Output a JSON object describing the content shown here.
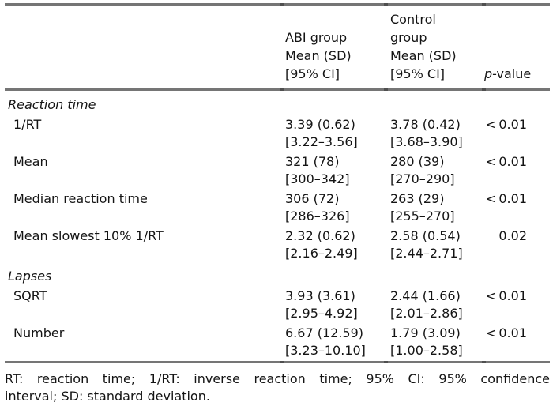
{
  "table": {
    "header": {
      "abi_lines": [
        "ABI group",
        "Mean (SD)",
        "[95% CI]"
      ],
      "control_lines": [
        "Control",
        "group",
        "Mean (SD)",
        "[95% CI]"
      ],
      "pvalue_prefix": "p",
      "pvalue_suffix": "-value"
    },
    "rows": [
      {
        "type": "section",
        "label": "Reaction time"
      },
      {
        "type": "data",
        "label": "1/RT",
        "abi_mean": "3.39 (0.62)",
        "abi_ci": "[3.22–3.56]",
        "control_mean": "3.78 (0.42)",
        "control_ci": "[3.68–3.90]",
        "p": "< 0.01"
      },
      {
        "type": "data",
        "label": "Mean",
        "abi_mean": "321 (78)",
        "abi_ci": "[300–342]",
        "control_mean": "280 (39)",
        "control_ci": "[270–290]",
        "p": "< 0.01"
      },
      {
        "type": "data",
        "label": "Median reaction time",
        "abi_mean": "306 (72)",
        "abi_ci": "[286–326]",
        "control_mean": "263 (29)",
        "control_ci": "[255–270]",
        "p": "< 0.01"
      },
      {
        "type": "data",
        "label": "Mean slowest 10% 1/RT",
        "abi_mean": "2.32 (0.62)",
        "abi_ci": "[2.16–2.49]",
        "control_mean": "2.58 (0.54)",
        "control_ci": "[2.44–2.71]",
        "p": "0.02"
      },
      {
        "type": "section",
        "label": "Lapses"
      },
      {
        "type": "data",
        "label": "SQRT",
        "abi_mean": "3.93 (3.61)",
        "abi_ci": "[2.95–4.92]",
        "control_mean": "2.44 (1.66)",
        "control_ci": "[2.01–2.86]",
        "p": "< 0.01"
      },
      {
        "type": "data",
        "label": "Number",
        "abi_mean": "6.67 (12.59)",
        "abi_ci": "[3.23–10.10]",
        "control_mean": "1.79 (3.09)",
        "control_ci": "[1.00–2.58]",
        "p": "< 0.01"
      }
    ]
  },
  "footnote": {
    "line1": "RT: reaction time; 1/RT: inverse reaction time; 95% CI: 95% confidence",
    "line2": "interval; SD: standard deviation."
  },
  "colors": {
    "rule": "#757575",
    "text": "#141414",
    "background": "#ffffff"
  }
}
